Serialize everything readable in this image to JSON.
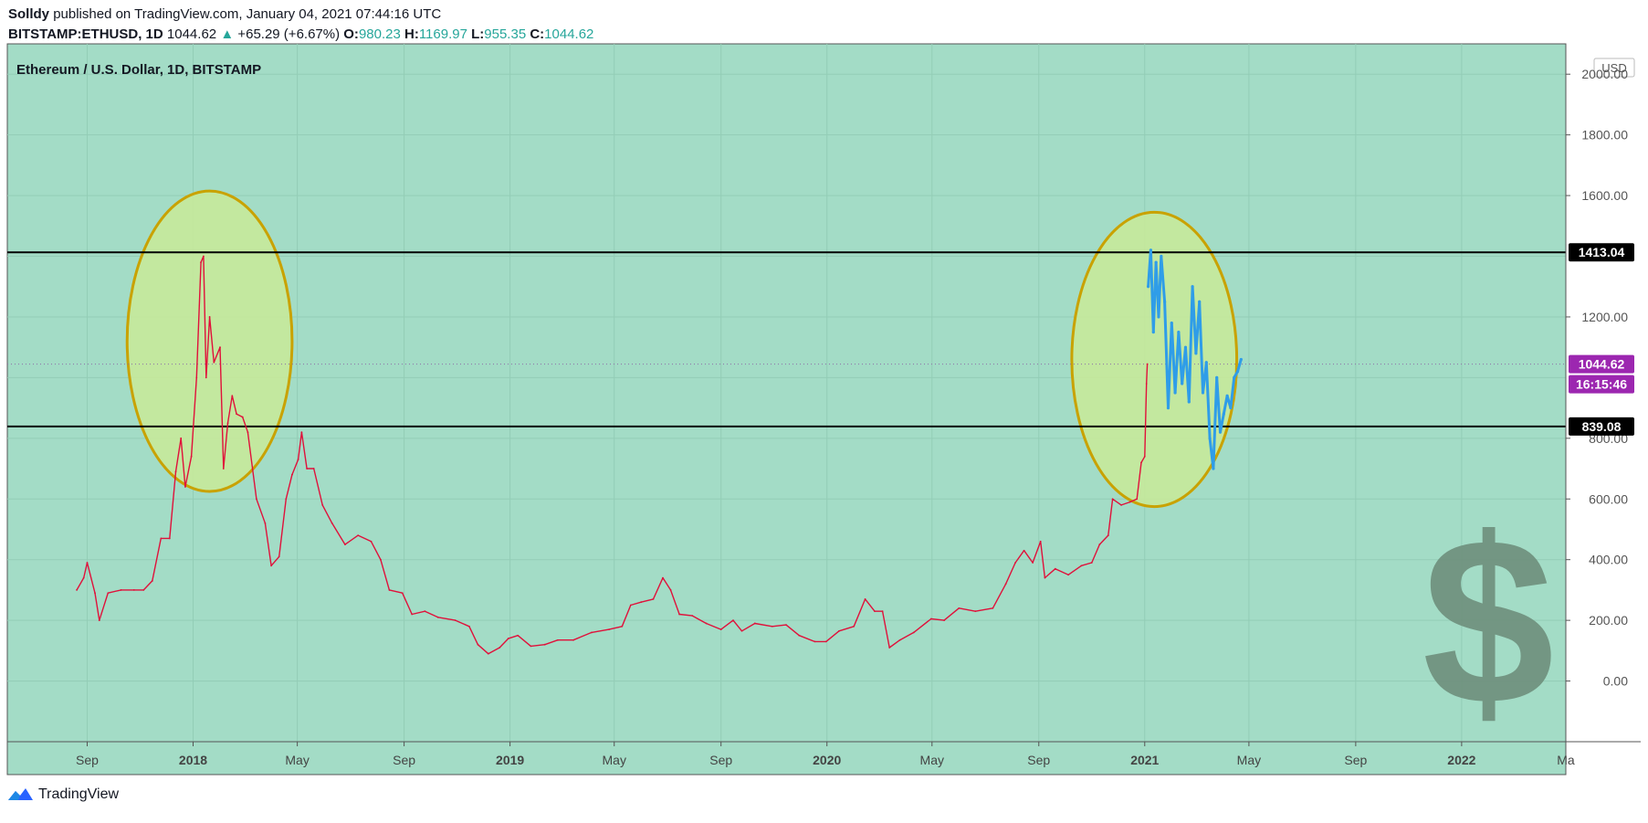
{
  "header": {
    "author": "Solldy",
    "published_text": "published on TradingView.com, January 04, 2021 07:44:16 UTC",
    "symbol": "BITSTAMP:ETHUSD, 1D",
    "last": "1044.62",
    "change": "+65.29 (+6.67%)",
    "o_label": "O:",
    "o_value": "980.23",
    "h_label": "H:",
    "h_value": "1169.97",
    "l_label": "L:",
    "l_value": "955.35",
    "c_label": "C:",
    "c_value": "1044.62"
  },
  "footer": {
    "brand": "TradingView"
  },
  "colors": {
    "background": "#a3dcc6",
    "price_line": "#e0103a",
    "projection": "#2f9de8",
    "ellipse_fill": "#c6e99a",
    "ellipse_stroke": "#c9a200",
    "level_line": "#000000",
    "last_price_badge": "#9c27b0",
    "dollar_sign": "#6e8f7c"
  },
  "icons": {
    "logo": "tradingview-logo-icon",
    "watermark": "dollar-sign-icon"
  },
  "chart_data": {
    "type": "line",
    "title": "Ethereum / U.S. Dollar, 1D, BITSTAMP",
    "currency_label": "USD",
    "ylim": [
      -200,
      2100
    ],
    "y_ticks": [
      0,
      200,
      400,
      600,
      800,
      1000,
      1200,
      1400,
      1600,
      1800,
      2000
    ],
    "y_tick_labels": [
      "0.00",
      "200.00",
      "400.00",
      "600.00",
      "800.00",
      "",
      "1200.00",
      "",
      "1600.00",
      "1800.00",
      "2000.00"
    ],
    "x_ticks": [
      "2017-09-01",
      "2018-01-01",
      "2018-05-01",
      "2018-09-01",
      "2019-01-01",
      "2019-05-01",
      "2019-09-01",
      "2020-01-01",
      "2020-05-01",
      "2020-09-01",
      "2021-01-01",
      "2021-05-01",
      "2021-09-01",
      "2022-01-01",
      "2022-05-01"
    ],
    "x_tick_labels": [
      "Sep",
      "2018",
      "May",
      "Sep",
      "2019",
      "May",
      "Sep",
      "2020",
      "May",
      "Sep",
      "2021",
      "May",
      "Sep",
      "2022",
      "Ma"
    ],
    "xlim": [
      "2017-06-01",
      "2022-05-01"
    ],
    "horizontal_levels": [
      {
        "value": 1413.04,
        "label": "1413.04"
      },
      {
        "value": 839.08,
        "label": "839.08"
      }
    ],
    "last_price": {
      "value": 1044.62,
      "label": "1044.62",
      "countdown": "16:15:46"
    },
    "series": [
      {
        "type": "price",
        "points": [
          [
            "2017-08-20",
            300
          ],
          [
            "2017-08-28",
            340
          ],
          [
            "2017-09-01",
            390
          ],
          [
            "2017-09-10",
            290
          ],
          [
            "2017-09-15",
            200
          ],
          [
            "2017-09-25",
            290
          ],
          [
            "2017-10-10",
            300
          ],
          [
            "2017-10-25",
            300
          ],
          [
            "2017-11-05",
            300
          ],
          [
            "2017-11-15",
            330
          ],
          [
            "2017-11-25",
            470
          ],
          [
            "2017-12-05",
            470
          ],
          [
            "2017-12-12",
            690
          ],
          [
            "2017-12-18",
            800
          ],
          [
            "2017-12-23",
            640
          ],
          [
            "2017-12-30",
            740
          ],
          [
            "2018-01-05",
            1000
          ],
          [
            "2018-01-10",
            1380
          ],
          [
            "2018-01-13",
            1400
          ],
          [
            "2018-01-16",
            1000
          ],
          [
            "2018-01-20",
            1200
          ],
          [
            "2018-01-25",
            1050
          ],
          [
            "2018-02-01",
            1100
          ],
          [
            "2018-02-05",
            700
          ],
          [
            "2018-02-10",
            850
          ],
          [
            "2018-02-15",
            940
          ],
          [
            "2018-02-20",
            880
          ],
          [
            "2018-02-27",
            870
          ],
          [
            "2018-03-05",
            820
          ],
          [
            "2018-03-15",
            600
          ],
          [
            "2018-03-25",
            520
          ],
          [
            "2018-04-01",
            380
          ],
          [
            "2018-04-10",
            410
          ],
          [
            "2018-04-18",
            600
          ],
          [
            "2018-04-25",
            680
          ],
          [
            "2018-05-02",
            730
          ],
          [
            "2018-05-06",
            820
          ],
          [
            "2018-05-12",
            700
          ],
          [
            "2018-05-20",
            700
          ],
          [
            "2018-05-30",
            580
          ],
          [
            "2018-06-10",
            520
          ],
          [
            "2018-06-25",
            450
          ],
          [
            "2018-07-10",
            480
          ],
          [
            "2018-07-25",
            460
          ],
          [
            "2018-08-05",
            400
          ],
          [
            "2018-08-15",
            300
          ],
          [
            "2018-08-30",
            290
          ],
          [
            "2018-09-10",
            220
          ],
          [
            "2018-09-25",
            230
          ],
          [
            "2018-10-10",
            210
          ],
          [
            "2018-10-30",
            200
          ],
          [
            "2018-11-15",
            180
          ],
          [
            "2018-11-25",
            120
          ],
          [
            "2018-12-07",
            90
          ],
          [
            "2018-12-20",
            110
          ],
          [
            "2018-12-30",
            140
          ],
          [
            "2019-01-10",
            150
          ],
          [
            "2019-01-25",
            115
          ],
          [
            "2019-02-10",
            120
          ],
          [
            "2019-02-25",
            135
          ],
          [
            "2019-03-15",
            135
          ],
          [
            "2019-04-05",
            160
          ],
          [
            "2019-04-25",
            170
          ],
          [
            "2019-05-10",
            180
          ],
          [
            "2019-05-20",
            250
          ],
          [
            "2019-06-01",
            260
          ],
          [
            "2019-06-15",
            270
          ],
          [
            "2019-06-26",
            340
          ],
          [
            "2019-07-05",
            300
          ],
          [
            "2019-07-15",
            220
          ],
          [
            "2019-07-30",
            215
          ],
          [
            "2019-08-15",
            190
          ],
          [
            "2019-09-01",
            170
          ],
          [
            "2019-09-15",
            200
          ],
          [
            "2019-09-25",
            165
          ],
          [
            "2019-10-10",
            190
          ],
          [
            "2019-10-30",
            180
          ],
          [
            "2019-11-15",
            185
          ],
          [
            "2019-11-30",
            150
          ],
          [
            "2019-12-18",
            130
          ],
          [
            "2019-12-31",
            130
          ],
          [
            "2020-01-15",
            165
          ],
          [
            "2020-02-01",
            180
          ],
          [
            "2020-02-14",
            270
          ],
          [
            "2020-02-25",
            230
          ],
          [
            "2020-03-05",
            230
          ],
          [
            "2020-03-13",
            110
          ],
          [
            "2020-03-25",
            135
          ],
          [
            "2020-04-10",
            160
          ],
          [
            "2020-04-30",
            205
          ],
          [
            "2020-05-15",
            200
          ],
          [
            "2020-06-01",
            240
          ],
          [
            "2020-06-20",
            230
          ],
          [
            "2020-07-10",
            240
          ],
          [
            "2020-07-25",
            320
          ],
          [
            "2020-08-05",
            390
          ],
          [
            "2020-08-15",
            430
          ],
          [
            "2020-08-25",
            390
          ],
          [
            "2020-09-03",
            460
          ],
          [
            "2020-09-08",
            340
          ],
          [
            "2020-09-20",
            370
          ],
          [
            "2020-10-05",
            350
          ],
          [
            "2020-10-20",
            380
          ],
          [
            "2020-11-01",
            390
          ],
          [
            "2020-11-10",
            450
          ],
          [
            "2020-11-20",
            480
          ],
          [
            "2020-11-25",
            600
          ],
          [
            "2020-12-05",
            580
          ],
          [
            "2020-12-15",
            590
          ],
          [
            "2020-12-23",
            600
          ],
          [
            "2020-12-28",
            720
          ],
          [
            "2021-01-01",
            740
          ],
          [
            "2021-01-03",
            980
          ],
          [
            "2021-01-04",
            1044.62
          ]
        ]
      },
      {
        "type": "projection",
        "points": [
          [
            "2021-01-05",
            1300
          ],
          [
            "2021-01-08",
            1420
          ],
          [
            "2021-01-11",
            1150
          ],
          [
            "2021-01-14",
            1380
          ],
          [
            "2021-01-17",
            1200
          ],
          [
            "2021-01-20",
            1400
          ],
          [
            "2021-01-24",
            1250
          ],
          [
            "2021-01-28",
            900
          ],
          [
            "2021-02-01",
            1180
          ],
          [
            "2021-02-05",
            950
          ],
          [
            "2021-02-09",
            1150
          ],
          [
            "2021-02-13",
            980
          ],
          [
            "2021-02-17",
            1100
          ],
          [
            "2021-02-21",
            920
          ],
          [
            "2021-02-25",
            1300
          ],
          [
            "2021-03-01",
            1080
          ],
          [
            "2021-03-05",
            1250
          ],
          [
            "2021-03-09",
            950
          ],
          [
            "2021-03-13",
            1050
          ],
          [
            "2021-03-17",
            800
          ],
          [
            "2021-03-21",
            700
          ],
          [
            "2021-03-25",
            1000
          ],
          [
            "2021-03-29",
            820
          ],
          [
            "2021-04-02",
            880
          ],
          [
            "2021-04-06",
            940
          ],
          [
            "2021-04-10",
            900
          ],
          [
            "2021-04-14",
            1000
          ],
          [
            "2021-04-18",
            1020
          ],
          [
            "2021-04-22",
            1060
          ]
        ]
      }
    ],
    "highlights": [
      {
        "center": [
          "2018-01-20",
          1120
        ],
        "rx_days": 95,
        "ry_value": 990
      },
      {
        "center": [
          "2021-01-12",
          1060
        ],
        "rx_days": 95,
        "ry_value": 970
      }
    ]
  }
}
